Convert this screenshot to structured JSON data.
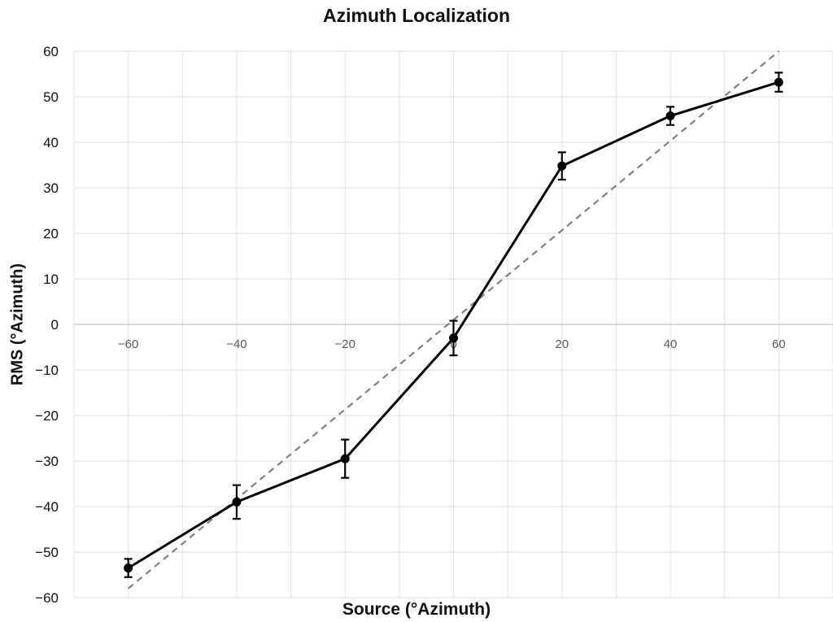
{
  "chart_data": {
    "type": "line",
    "title": "Azimuth Localization",
    "xlabel": "Source (°Azimuth)",
    "ylabel": "RMS (°Azimuth)",
    "x": [
      -60,
      -40,
      -20,
      0,
      20,
      40,
      60
    ],
    "x_tick_labels": [
      "−60",
      "−40",
      "−20",
      "0",
      "20",
      "40",
      "60"
    ],
    "y_tick_labels": [
      "60",
      "50",
      "40",
      "30",
      "20",
      "10",
      "0",
      "−10",
      "−20",
      "−30",
      "−40",
      "−50",
      "−60"
    ],
    "xlim": [
      -70,
      70
    ],
    "ylim": [
      -60,
      60
    ],
    "grid": true,
    "legend": "none",
    "series": [
      {
        "values": [
          -53.5,
          -39.0,
          -29.5,
          -3.0,
          34.8,
          45.8,
          53.2
        ],
        "error": [
          2.0,
          3.7,
          4.2,
          3.8,
          3.0,
          2.0,
          2.1
        ],
        "color": "#000000",
        "style": "solid",
        "markers": "circle"
      },
      {
        "x": [
          -60,
          60
        ],
        "values": [
          -58,
          60
        ],
        "color": "#808080",
        "style": "dashed",
        "markers": "none"
      }
    ]
  }
}
